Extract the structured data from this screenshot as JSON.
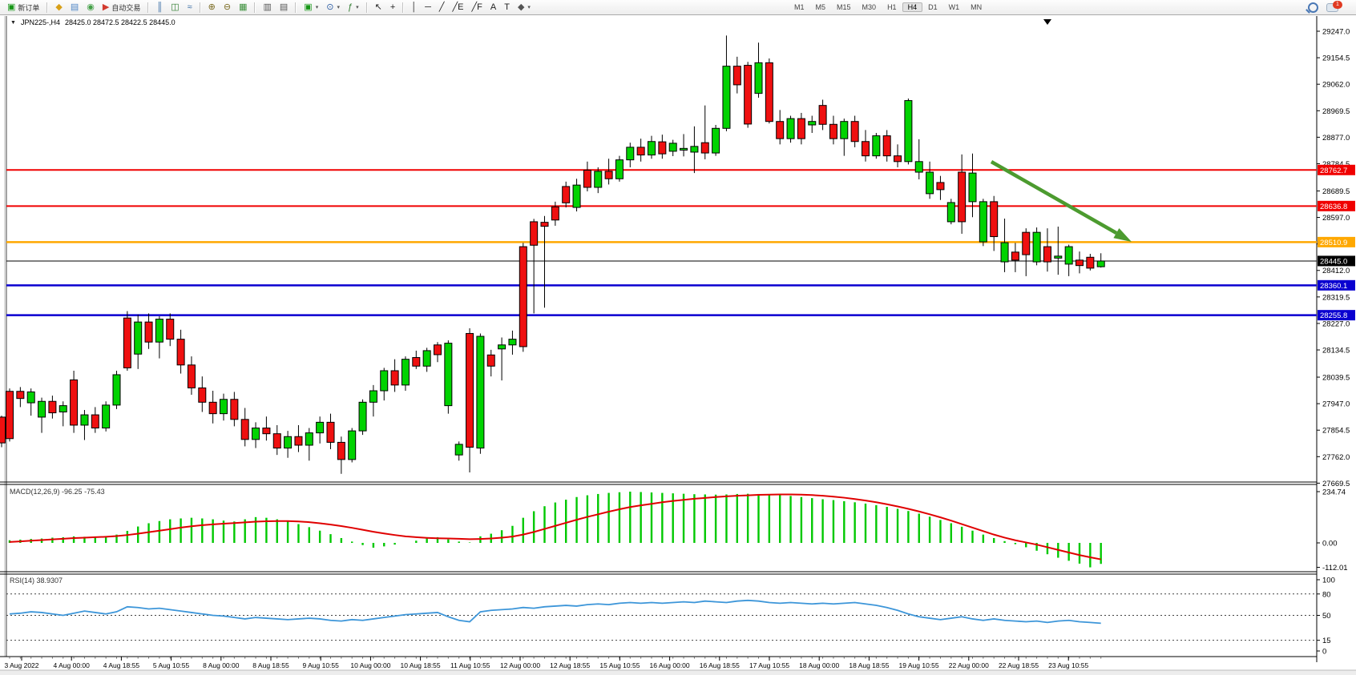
{
  "toolbar": {
    "new_order_label": "新订单",
    "autotrade_label": "自动交易",
    "icons_left": [
      {
        "name": "new-order-icon",
        "glyph": "▣",
        "color": "#169616",
        "label_key": "new_order_label"
      },
      {
        "sep": true
      },
      {
        "name": "styler-icon",
        "glyph": "◆",
        "color": "#d8a018"
      },
      {
        "name": "profile-icon",
        "glyph": "▤",
        "color": "#4f86c6"
      },
      {
        "name": "signals-icon",
        "glyph": "◉",
        "color": "#43a047"
      },
      {
        "name": "autotrade-icon",
        "glyph": "▶",
        "color": "#d23b2f",
        "label_key": "autotrade_label"
      },
      {
        "sep": true
      },
      {
        "name": "bar-chart-icon",
        "glyph": "║",
        "color": "#3a6ea5"
      },
      {
        "name": "candlestick-icon",
        "glyph": "◫",
        "color": "#2f7d2f"
      },
      {
        "name": "line-chart-icon",
        "glyph": "≈",
        "color": "#3a6ea5"
      },
      {
        "sep": true
      },
      {
        "name": "zoom-in-icon",
        "glyph": "⊕",
        "color": "#7a6a20"
      },
      {
        "name": "zoom-out-icon",
        "glyph": "⊖",
        "color": "#7a6a20"
      },
      {
        "name": "tile-windows-icon",
        "glyph": "▦",
        "color": "#3a8f3a"
      },
      {
        "sep": true
      },
      {
        "name": "arrange-vertical-icon",
        "glyph": "▥",
        "color": "#555"
      },
      {
        "name": "arrange-cascade-icon",
        "glyph": "▤",
        "color": "#555"
      },
      {
        "sep": true
      },
      {
        "name": "new-chart-icon",
        "glyph": "▣",
        "color": "#169616",
        "caret": true
      },
      {
        "name": "period-clock-icon",
        "glyph": "⊙",
        "color": "#2f5fa5",
        "caret": true
      },
      {
        "name": "indicators-icon",
        "glyph": "ƒ",
        "color": "#2f7d2f",
        "caret": true
      },
      {
        "sep": true
      },
      {
        "name": "cursor-icon",
        "glyph": "↖",
        "color": "#222"
      },
      {
        "name": "crosshair-icon",
        "glyph": "+",
        "color": "#222"
      },
      {
        "sep": true
      },
      {
        "name": "vline-icon",
        "glyph": "│",
        "color": "#222"
      },
      {
        "name": "hline-icon",
        "glyph": "─",
        "color": "#222"
      },
      {
        "name": "trendline-icon",
        "glyph": "╱",
        "color": "#222"
      },
      {
        "name": "channel-icon",
        "glyph": "╱E",
        "color": "#222"
      },
      {
        "name": "fibonacci-icon",
        "glyph": "╱F",
        "color": "#222"
      },
      {
        "name": "text-icon",
        "glyph": "A",
        "color": "#222"
      },
      {
        "name": "label-icon",
        "glyph": "T",
        "color": "#222"
      },
      {
        "name": "shapes-icon",
        "glyph": "◆",
        "color": "#555",
        "caret": true
      }
    ],
    "timeframes": [
      "M1",
      "M5",
      "M15",
      "M30",
      "H1",
      "H4",
      "D1",
      "W1",
      "MN"
    ],
    "active_timeframe": "H4",
    "notification_badge": "1"
  },
  "chart": {
    "title_symbol": "JPN225-,H4",
    "title_ohlc": "28425.0 28472.5 28422.5 28445.0",
    "price_ticks": [
      "29247.0",
      "29154.5",
      "29062.0",
      "28969.5",
      "28877.0",
      "28784.5",
      "28689.5",
      "28597.0",
      "28504.5",
      "28412.0",
      "28319.5",
      "28227.0",
      "28134.5",
      "28039.5",
      "27947.0",
      "27854.5",
      "27762.0",
      "27669.5"
    ],
    "hlines": [
      {
        "label": "28762.7",
        "color": "#f00000",
        "width": 2
      },
      {
        "label": "28636.8",
        "color": "#f00000",
        "width": 2
      },
      {
        "label": "28510.9",
        "color": "#ffa800",
        "width": 2.5
      },
      {
        "label": "28360.1",
        "color": "#0a00d0",
        "width": 2.5
      },
      {
        "label": "28255.8",
        "color": "#0a00d0",
        "width": 2.5
      }
    ],
    "bid_label": "28445.0",
    "date_labels": [
      "3 Aug 2022",
      "4 Aug 00:00",
      "4 Aug 18:55",
      "5 Aug 10:55",
      "8 Aug 00:00",
      "8 Aug 18:55",
      "9 Aug 10:55",
      "10 Aug 00:00",
      "10 Aug 18:55",
      "11 Aug 10:55",
      "12 Aug 00:00",
      "12 Aug 18:55",
      "15 Aug 10:55",
      "16 Aug 00:00",
      "16 Aug 18:55",
      "17 Aug 10:55",
      "18 Aug 00:00",
      "18 Aug 18:55",
      "19 Aug 10:55",
      "22 Aug 00:00",
      "22 Aug 18:55",
      "23 Aug 10:55"
    ],
    "arrow_color": "#4c9b2f",
    "candle_up_color": "#00d300",
    "candle_down_color": "#ef1010"
  },
  "chart_data": {
    "type": "candlestick",
    "symbol": "JPN225-,H4",
    "edge_candle": [
      27900,
      27905,
      27795,
      27810
    ],
    "candles": [
      [
        27990,
        28000,
        27815,
        27825
      ],
      [
        27990,
        28005,
        27935,
        27965
      ],
      [
        27950,
        28000,
        27905,
        27988
      ],
      [
        27900,
        27968,
        27845,
        27955
      ],
      [
        27955,
        27975,
        27895,
        27915
      ],
      [
        27918,
        27955,
        27868,
        27940
      ],
      [
        28030,
        28062,
        27845,
        27872
      ],
      [
        27872,
        27925,
        27820,
        27908
      ],
      [
        27908,
        27935,
        27845,
        27862
      ],
      [
        27862,
        27955,
        27850,
        27942
      ],
      [
        27942,
        28062,
        27928,
        28048
      ],
      [
        28246,
        28270,
        28062,
        28072
      ],
      [
        28120,
        28258,
        28068,
        28232
      ],
      [
        28232,
        28262,
        28138,
        28162
      ],
      [
        28162,
        28252,
        28105,
        28242
      ],
      [
        28242,
        28262,
        28148,
        28172
      ],
      [
        28172,
        28205,
        28052,
        28082
      ],
      [
        28082,
        28112,
        27978,
        28002
      ],
      [
        28002,
        28042,
        27918,
        27952
      ],
      [
        27952,
        27992,
        27878,
        27912
      ],
      [
        27912,
        27982,
        27888,
        27962
      ],
      [
        27962,
        27988,
        27868,
        27892
      ],
      [
        27892,
        27932,
        27798,
        27822
      ],
      [
        27822,
        27882,
        27792,
        27862
      ],
      [
        27862,
        27902,
        27818,
        27842
      ],
      [
        27842,
        27872,
        27768,
        27792
      ],
      [
        27792,
        27852,
        27758,
        27832
      ],
      [
        27832,
        27872,
        27778,
        27802
      ],
      [
        27802,
        27862,
        27748,
        27845
      ],
      [
        27845,
        27902,
        27808,
        27882
      ],
      [
        27882,
        27912,
        27788,
        27812
      ],
      [
        27812,
        27832,
        27702,
        27752
      ],
      [
        27752,
        27862,
        27742,
        27852
      ],
      [
        27852,
        27962,
        27838,
        27952
      ],
      [
        27952,
        28012,
        27902,
        27992
      ],
      [
        27992,
        28072,
        27958,
        28062
      ],
      [
        28062,
        28102,
        27988,
        28012
      ],
      [
        28012,
        28112,
        27992,
        28102
      ],
      [
        28108,
        28132,
        28068,
        28078
      ],
      [
        28078,
        28142,
        28058,
        28132
      ],
      [
        28152,
        28162,
        28092,
        28118
      ],
      [
        27940,
        28168,
        27912,
        28158
      ],
      [
        27768,
        27815,
        27748,
        27805
      ],
      [
        28192,
        28210,
        27707,
        27795
      ],
      [
        27792,
        28192,
        27772,
        28182
      ],
      [
        28117,
        28135,
        28042,
        28078
      ],
      [
        28138,
        28178,
        28028,
        28152
      ],
      [
        28152,
        28202,
        28118,
        28172
      ],
      [
        28495,
        28508,
        28128,
        28146
      ],
      [
        28582,
        28592,
        28262,
        28500
      ],
      [
        28580,
        28602,
        28282,
        28566
      ],
      [
        28634,
        28652,
        28568,
        28588
      ],
      [
        28705,
        28722,
        28632,
        28648
      ],
      [
        28632,
        28732,
        28618,
        28710
      ],
      [
        28762,
        28792,
        28688,
        28702
      ],
      [
        28702,
        28772,
        28682,
        28758
      ],
      [
        28758,
        28802,
        28712,
        28732
      ],
      [
        28732,
        28812,
        28722,
        28798
      ],
      [
        28798,
        28858,
        28772,
        28842
      ],
      [
        28842,
        28872,
        28792,
        28815
      ],
      [
        28815,
        28882,
        28802,
        28862
      ],
      [
        28861,
        28886,
        28802,
        28819
      ],
      [
        28828,
        28868,
        28811,
        28856
      ],
      [
        28832,
        28888,
        28810,
        28838
      ],
      [
        28825,
        28915,
        28752,
        28845
      ],
      [
        28858,
        28988,
        28800,
        28822
      ],
      [
        28822,
        28920,
        28812,
        28908
      ],
      [
        28908,
        29232,
        28898,
        29125
      ],
      [
        29125,
        29158,
        29030,
        29060
      ],
      [
        29128,
        29140,
        28910,
        28923
      ],
      [
        29030,
        29207,
        29015,
        29137
      ],
      [
        29137,
        29152,
        28925,
        28932
      ],
      [
        28932,
        28972,
        28852,
        28872
      ],
      [
        28872,
        28952,
        28858,
        28942
      ],
      [
        28942,
        28962,
        28852,
        28872
      ],
      [
        28920,
        28952,
        28892,
        28932
      ],
      [
        28988,
        29008,
        28902,
        28922
      ],
      [
        28922,
        28952,
        28852,
        28872
      ],
      [
        28872,
        28942,
        28812,
        28932
      ],
      [
        28932,
        28952,
        28842,
        28862
      ],
      [
        28862,
        28902,
        28792,
        28812
      ],
      [
        28812,
        28892,
        28802,
        28882
      ],
      [
        28882,
        28902,
        28792,
        28812
      ],
      [
        28812,
        28852,
        28772,
        28792
      ],
      [
        28792,
        29012,
        28782,
        29005
      ],
      [
        28755,
        28870,
        28730,
        28792
      ],
      [
        28680,
        28792,
        28662,
        28755
      ],
      [
        28719,
        28742,
        28658,
        28694
      ],
      [
        28582,
        28662,
        28573,
        28649
      ],
      [
        28755,
        28817,
        28540,
        28582
      ],
      [
        28652,
        28820,
        28598,
        28752
      ],
      [
        28512,
        28662,
        28497,
        28652
      ],
      [
        28652,
        28672,
        28480,
        28530
      ],
      [
        28442,
        28593,
        28406,
        28509
      ],
      [
        28476,
        28508,
        28406,
        28448
      ],
      [
        28545,
        28559,
        28392,
        28467
      ],
      [
        28442,
        28562,
        28430,
        28545
      ],
      [
        28495,
        28559,
        28408,
        28442
      ],
      [
        28455,
        28565,
        28397,
        28462
      ],
      [
        28434,
        28502,
        28392,
        28495
      ],
      [
        28448,
        28478,
        28402,
        28429
      ],
      [
        28458,
        28470,
        28412,
        28420
      ],
      [
        28425,
        28472,
        28422,
        28445
      ]
    ],
    "macd": {
      "label": "MACD(12,26,9)",
      "main_value": "-96.25",
      "signal_value": "-75.43",
      "ticks": [
        "234.74",
        "0.00",
        "-112.01"
      ],
      "histogram": [
        12,
        15,
        18,
        20,
        24,
        26,
        30,
        28,
        25,
        30,
        38,
        55,
        75,
        90,
        100,
        108,
        112,
        115,
        112,
        108,
        102,
        98,
        108,
        118,
        115,
        108,
        98,
        86,
        72,
        56,
        40,
        22,
        6,
        -10,
        -22,
        -16,
        -8,
        0,
        10,
        20,
        26,
        16,
        6,
        2,
        30,
        42,
        58,
        78,
        115,
        145,
        168,
        185,
        198,
        210,
        218,
        224,
        229,
        232,
        234.7,
        233,
        231,
        229,
        227,
        225,
        223,
        222,
        221,
        222,
        224,
        225,
        224,
        222,
        219,
        215,
        210,
        205,
        200,
        196,
        191,
        186,
        180,
        173,
        165,
        156,
        146,
        134,
        120,
        105,
        90,
        74,
        56,
        38,
        22,
        8,
        -6,
        -20,
        -36,
        -52,
        -68,
        -82,
        -95,
        -112,
        -96.25
      ],
      "signal": [
        4,
        7,
        10,
        13,
        16,
        19,
        22,
        24,
        26,
        28,
        31,
        36,
        42,
        49,
        56,
        63,
        70,
        76,
        81,
        85,
        88,
        91,
        94,
        97,
        99,
        100,
        100,
        98,
        95,
        90,
        84,
        77,
        69,
        60,
        51,
        43,
        36,
        30,
        26,
        23,
        21,
        20,
        19,
        17,
        18,
        20,
        24,
        29,
        38,
        50,
        64,
        78,
        92,
        106,
        119,
        131,
        143,
        154,
        164,
        172,
        179,
        186,
        192,
        197,
        202,
        206,
        210,
        213,
        216,
        218,
        220,
        221,
        222,
        222,
        221,
        219,
        216,
        212,
        207,
        201,
        194,
        186,
        177,
        167,
        156,
        144,
        131,
        117,
        102,
        86,
        70,
        54,
        38,
        24,
        12,
        2,
        -8,
        -20,
        -32,
        -44,
        -56,
        -66,
        -75.43
      ]
    },
    "rsi": {
      "label": "RSI(14)",
      "value": "38.9307",
      "ticks": [
        "100",
        "80",
        "50",
        "15",
        "0"
      ],
      "levels": [
        80,
        50,
        15
      ],
      "values": [
        52,
        53,
        55,
        54,
        52,
        50,
        53,
        56,
        54,
        52,
        55,
        62,
        61,
        59,
        60,
        58,
        56,
        54,
        52,
        50,
        49,
        47,
        45,
        47,
        46,
        45,
        44,
        45,
        46,
        45,
        43,
        42,
        44,
        43,
        45,
        47,
        49,
        51,
        52,
        53,
        54,
        48,
        43,
        41,
        55,
        57,
        58,
        59,
        61,
        60,
        62,
        63,
        64,
        63,
        65,
        66,
        65,
        67,
        68,
        67,
        68,
        67,
        68,
        69,
        68,
        70,
        69,
        68,
        70,
        71,
        70,
        68,
        67,
        68,
        67,
        66,
        67,
        66,
        67,
        68,
        66,
        64,
        61,
        57,
        52,
        48,
        46,
        44,
        46,
        48,
        45,
        43,
        45,
        43,
        42,
        41,
        42,
        40,
        42,
        43,
        41,
        40,
        38.93
      ]
    }
  }
}
